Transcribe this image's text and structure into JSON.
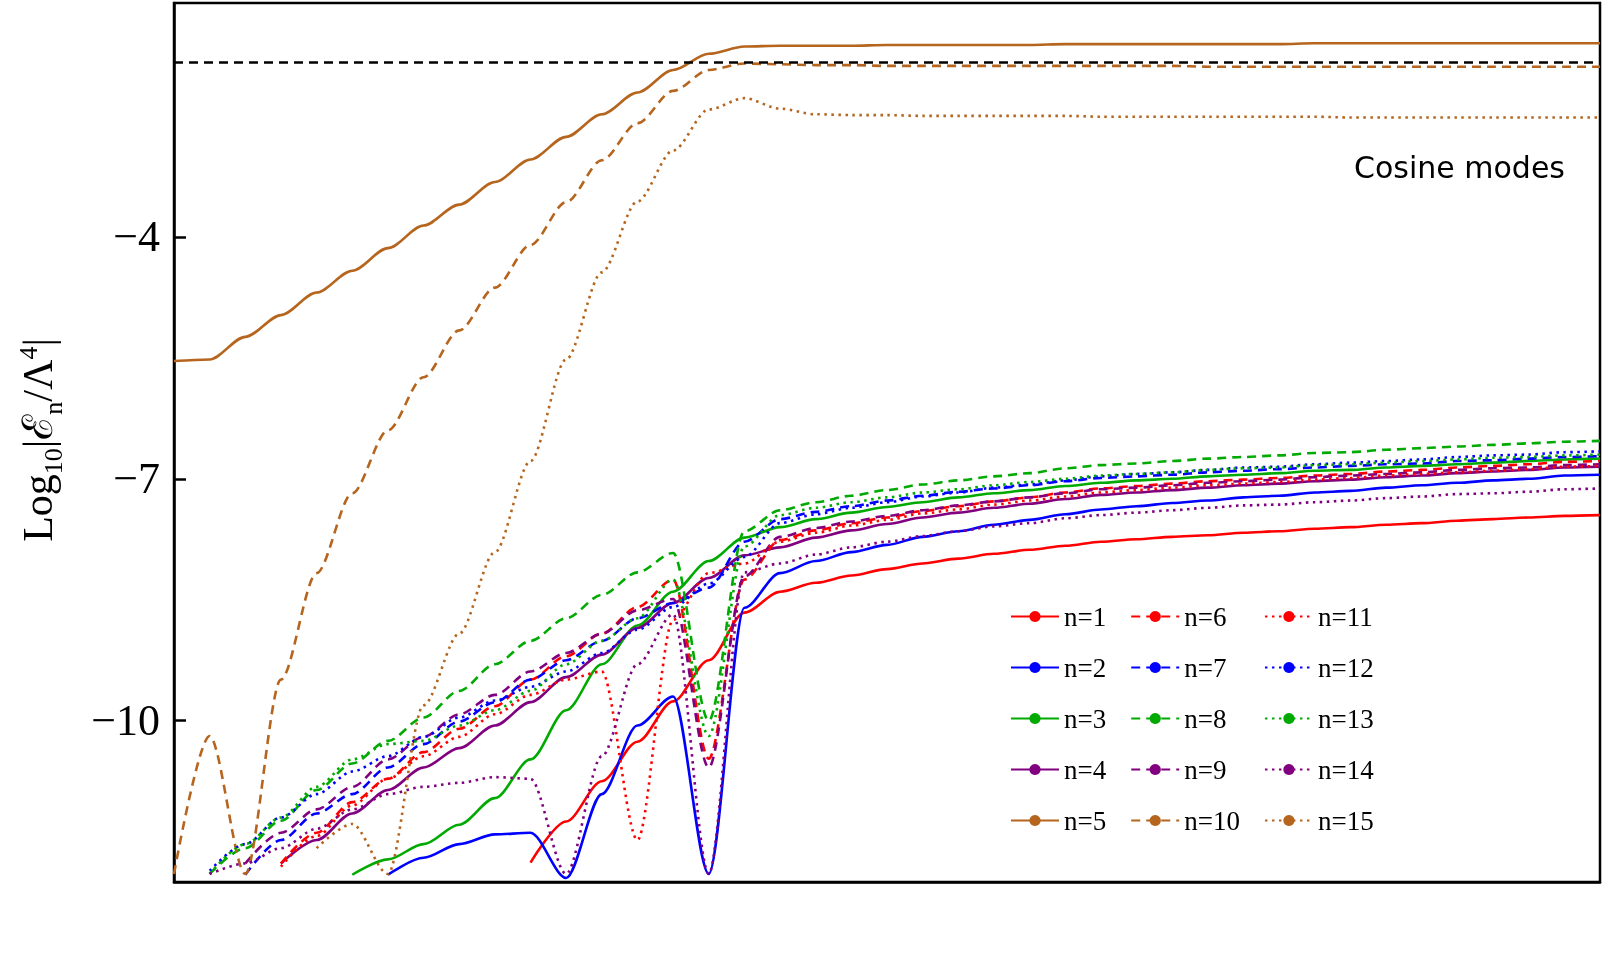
{
  "chart_data": {
    "type": "line",
    "ylabel": "Log$_{10}$|ℰ$_{n}$/Λ$^{4}$|",
    "annotations": [
      "Cosine modes"
    ],
    "categories": [
      null,
      null,
      null,
      null,
      null,
      null,
      null,
      null,
      null,
      null,
      null,
      null,
      null,
      null,
      null,
      null,
      null,
      null,
      null,
      null,
      null,
      null,
      null,
      null,
      null,
      null,
      null,
      null,
      null,
      null,
      null,
      null,
      null,
      null,
      null,
      null,
      null,
      null,
      null,
      null,
      null
    ],
    "ylim": [
      -12,
      -1.1
    ],
    "yticks": [
      {
        "value": -4,
        "label": "−4"
      },
      {
        "value": -7,
        "label": "−7"
      },
      {
        "value": -10,
        "label": "−10"
      }
    ],
    "tick_labels": "y",
    "legend": "bottom right",
    "marker": "none",
    "ref_lines": [
      {
        "axis": "y",
        "value": -1.83,
        "color": "#000000",
        "line_style": "dashed"
      }
    ],
    "series": [
      {
        "name": "n=1",
        "color": "#ff0000",
        "line_style": "solid",
        "values": [
          null,
          null,
          null,
          null,
          null,
          null,
          null,
          null,
          null,
          null,
          -11.76,
          -11.25,
          -10.75,
          -10.26,
          -9.76,
          -9.25,
          -8.66,
          -8.4,
          -8.29,
          -8.2,
          -8.12,
          -8.05,
          -7.99,
          -7.93,
          -7.88,
          -7.83,
          -7.78,
          -7.75,
          -7.72,
          -7.7,
          -7.67,
          -7.65,
          -7.62,
          -7.6,
          -7.57,
          -7.55,
          -7.52,
          -7.5,
          -7.48,
          -7.46,
          -7.45
        ]
      },
      {
        "name": "n=2",
        "color": "#0000ff",
        "line_style": "solid",
        "values": [
          null,
          null,
          null,
          null,
          null,
          null,
          -11.91,
          -11.7,
          -11.53,
          -11.41,
          -11.39,
          -11.95,
          -10.91,
          -10.06,
          -9.7,
          -11.9,
          -8.6,
          -8.17,
          -8.02,
          -7.91,
          -7.82,
          -7.72,
          -7.65,
          -7.57,
          -7.51,
          -7.44,
          -7.38,
          -7.34,
          -7.3,
          -7.27,
          -7.23,
          -7.21,
          -7.17,
          -7.15,
          -7.11,
          -7.08,
          -7.05,
          -7.02,
          -7.0,
          -6.96,
          -6.95
        ]
      },
      {
        "name": "n=3",
        "color": "#00aa00",
        "line_style": "solid",
        "values": [
          null,
          null,
          null,
          null,
          null,
          -11.91,
          -11.72,
          -11.53,
          -11.29,
          -10.96,
          -10.48,
          -9.87,
          -9.3,
          -8.82,
          -8.4,
          -8.02,
          -7.73,
          -7.6,
          -7.5,
          -7.42,
          -7.35,
          -7.29,
          -7.23,
          -7.18,
          -7.14,
          -7.09,
          -7.05,
          -7.02,
          -7.0,
          -6.97,
          -6.95,
          -6.93,
          -6.9,
          -6.89,
          -6.86,
          -6.84,
          -6.82,
          -6.8,
          -6.78,
          -6.76,
          -6.75
        ]
      },
      {
        "name": "n=4",
        "color": "#800080",
        "line_style": "solid",
        "values": [
          null,
          null,
          null,
          -11.77,
          -11.48,
          -11.15,
          -10.86,
          -10.58,
          -10.34,
          -10.06,
          -9.77,
          -9.46,
          -9.18,
          -8.85,
          -8.54,
          -8.23,
          -7.95,
          -7.85,
          -7.73,
          -7.64,
          -7.56,
          -7.48,
          -7.42,
          -7.36,
          -7.31,
          -7.25,
          -7.2,
          -7.17,
          -7.14,
          -7.11,
          -7.08,
          -7.06,
          -7.03,
          -7.01,
          -6.98,
          -6.96,
          -6.93,
          -6.91,
          -6.89,
          -6.86,
          -6.85
        ]
      },
      {
        "name": "n=5",
        "color": "#b5651d",
        "line_style": "solid",
        "values": [
          -5.54,
          -5.52,
          -5.24,
          -4.97,
          -4.69,
          -4.42,
          -4.14,
          -3.86,
          -3.6,
          -3.32,
          -3.04,
          -2.76,
          -2.48,
          -2.21,
          -1.93,
          -1.73,
          -1.64,
          -1.63,
          -1.63,
          -1.63,
          -1.62,
          -1.62,
          -1.62,
          -1.62,
          -1.62,
          -1.61,
          -1.61,
          -1.61,
          -1.61,
          -1.61,
          -1.61,
          -1.61,
          -1.6,
          -1.6,
          -1.6,
          -1.6,
          -1.6,
          -1.6,
          -1.6,
          -1.6,
          -1.6
        ]
      },
      {
        "name": "n=6",
        "color": "#ff0000",
        "line_style": "dashed",
        "values": [
          null,
          null,
          null,
          -11.77,
          -11.39,
          -11.01,
          -10.72,
          -10.39,
          -10.1,
          -9.82,
          -9.49,
          -9.2,
          -8.92,
          -8.59,
          -8.25,
          -10.47,
          -8.25,
          -7.76,
          -7.64,
          -7.55,
          -7.48,
          -7.4,
          -7.34,
          -7.28,
          -7.23,
          -7.17,
          -7.12,
          -7.09,
          -7.06,
          -7.03,
          -7.01,
          -6.99,
          -6.96,
          -6.94,
          -6.91,
          -6.89,
          -6.86,
          -6.84,
          -6.82,
          -6.79,
          -6.78
        ]
      },
      {
        "name": "n=7",
        "color": "#0000ff",
        "line_style": "dashed",
        "values": [
          null,
          null,
          -11.91,
          -11.48,
          -11.15,
          -10.91,
          -10.58,
          -10.29,
          -10.01,
          -9.77,
          -9.49,
          -9.25,
          -9.01,
          -8.73,
          -8.54,
          -8.35,
          -7.78,
          -7.5,
          -7.41,
          -7.34,
          -7.27,
          -7.21,
          -7.16,
          -7.12,
          -7.08,
          -7.03,
          -6.99,
          -6.97,
          -6.95,
          -6.92,
          -6.9,
          -6.88,
          -6.86,
          -6.84,
          -6.82,
          -6.81,
          -6.78,
          -6.77,
          -6.75,
          -6.73,
          -6.72
        ]
      },
      {
        "name": "n=8",
        "color": "#00aa00",
        "line_style": "dashed",
        "values": [
          null,
          -11.9,
          -11.58,
          -11.24,
          -10.86,
          -10.53,
          -10.25,
          -9.96,
          -9.63,
          -9.3,
          -9.01,
          -8.73,
          -8.44,
          -8.16,
          -7.92,
          -10.0,
          -7.65,
          -7.39,
          -7.29,
          -7.21,
          -7.14,
          -7.07,
          -7.02,
          -6.97,
          -6.93,
          -6.87,
          -6.83,
          -6.81,
          -6.78,
          -6.75,
          -6.73,
          -6.71,
          -6.68,
          -6.67,
          -6.64,
          -6.62,
          -6.6,
          -6.58,
          -6.56,
          -6.54,
          -6.53
        ]
      },
      {
        "name": "n=9",
        "color": "#800080",
        "line_style": "dashed",
        "values": [
          null,
          null,
          -11.77,
          -11.39,
          -11.1,
          -10.82,
          -10.48,
          -10.2,
          -9.92,
          -9.68,
          -9.39,
          -9.16,
          -8.92,
          -8.63,
          -8.49,
          -10.58,
          -8.21,
          -7.72,
          -7.61,
          -7.53,
          -7.46,
          -7.39,
          -7.33,
          -7.28,
          -7.23,
          -7.18,
          -7.13,
          -7.11,
          -7.08,
          -7.05,
          -7.03,
          -7.01,
          -6.98,
          -6.96,
          -6.94,
          -6.92,
          -6.89,
          -6.87,
          -6.86,
          -6.83,
          -6.82
        ]
      },
      {
        "name": "n=10",
        "color": "#b5651d",
        "line_style": "dashed",
        "values": [
          -11.9,
          -10.19,
          -11.9,
          -9.49,
          -8.17,
          -7.18,
          -6.4,
          -5.74,
          -5.16,
          -4.63,
          -4.1,
          -3.57,
          -3.05,
          -2.59,
          -2.19,
          -1.93,
          -1.85,
          -1.86,
          -1.87,
          -1.87,
          -1.88,
          -1.88,
          -1.88,
          -1.88,
          -1.88,
          -1.88,
          -1.88,
          -1.88,
          -1.88,
          -1.89,
          -1.89,
          -1.89,
          -1.89,
          -1.89,
          -1.89,
          -1.89,
          -1.89,
          -1.89,
          -1.89,
          -1.89,
          -1.89
        ]
      },
      {
        "name": "n=11",
        "color": "#ff0000",
        "line_style": "dotted",
        "values": [
          null,
          null,
          null,
          -11.81,
          -11.43,
          -11.05,
          -10.72,
          -10.44,
          -10.2,
          -9.92,
          -9.68,
          -9.49,
          -9.39,
          -11.48,
          -8.75,
          -8.17,
          -8.05,
          -7.78,
          -7.67,
          -7.58,
          -7.51,
          -7.43,
          -7.38,
          -7.32,
          -7.27,
          -7.22,
          -7.17,
          -7.14,
          -7.11,
          -7.08,
          -7.06,
          -7.04,
          -7.01,
          -6.99,
          -6.96,
          -6.94,
          -6.92,
          -6.9,
          -6.88,
          -6.85,
          -6.84
        ]
      },
      {
        "name": "n=12",
        "color": "#0000ff",
        "line_style": "dotted",
        "values": [
          null,
          -11.86,
          -11.53,
          -11.2,
          -10.91,
          -10.63,
          -10.44,
          -10.2,
          -9.96,
          -9.75,
          -9.58,
          -9.39,
          -9.16,
          -8.87,
          -8.59,
          -8.3,
          -7.97,
          -7.55,
          -7.44,
          -7.36,
          -7.29,
          -7.22,
          -7.17,
          -7.11,
          -7.07,
          -7.02,
          -6.97,
          -6.94,
          -6.92,
          -6.89,
          -6.86,
          -6.85,
          -6.82,
          -6.8,
          -6.78,
          -6.76,
          -6.73,
          -6.71,
          -6.7,
          -6.67,
          -6.66
        ]
      },
      {
        "name": "n=13",
        "color": "#00aa00",
        "line_style": "dotted",
        "values": [
          null,
          -11.9,
          -11.53,
          -11.2,
          -10.82,
          -10.48,
          -10.29,
          -10.25,
          -10.06,
          -9.87,
          -9.63,
          -9.3,
          -9.01,
          -8.73,
          -8.25,
          -10.19,
          -7.84,
          -7.45,
          -7.36,
          -7.29,
          -7.23,
          -7.17,
          -7.13,
          -7.08,
          -7.04,
          -7.0,
          -6.96,
          -6.94,
          -6.92,
          -6.89,
          -6.87,
          -6.86,
          -6.83,
          -6.82,
          -6.8,
          -6.78,
          -6.76,
          -6.74,
          -6.73,
          -6.71,
          -6.7
        ]
      },
      {
        "name": "n=14",
        "color": "#800080",
        "line_style": "dotted",
        "values": [
          null,
          -11.9,
          -11.77,
          -11.58,
          -11.34,
          -11.1,
          -10.91,
          -10.82,
          -10.77,
          -10.7,
          -10.72,
          -11.9,
          -10.44,
          -9.3,
          -8.68,
          -11.9,
          -8.16,
          -8.05,
          -7.94,
          -7.85,
          -7.78,
          -7.71,
          -7.65,
          -7.59,
          -7.55,
          -7.49,
          -7.45,
          -7.42,
          -7.39,
          -7.36,
          -7.33,
          -7.32,
          -7.29,
          -7.27,
          -7.24,
          -7.22,
          -7.19,
          -7.18,
          -7.16,
          -7.13,
          -7.12
        ]
      },
      {
        "name": "n=15",
        "color": "#b5651d",
        "line_style": "dotted",
        "values": [
          null,
          null,
          null,
          null,
          -11.58,
          -11.28,
          -11.9,
          -9.81,
          -8.92,
          -7.91,
          -6.78,
          -5.52,
          -4.44,
          -3.56,
          -2.93,
          -2.42,
          -2.28,
          -2.41,
          -2.48,
          -2.49,
          -2.49,
          -2.5,
          -2.5,
          -2.5,
          -2.5,
          -2.5,
          -2.51,
          -2.51,
          -2.51,
          -2.51,
          -2.51,
          -2.51,
          -2.51,
          -2.52,
          -2.52,
          -2.52,
          -2.52,
          -2.52,
          -2.52,
          -2.52,
          -2.52
        ]
      }
    ]
  }
}
